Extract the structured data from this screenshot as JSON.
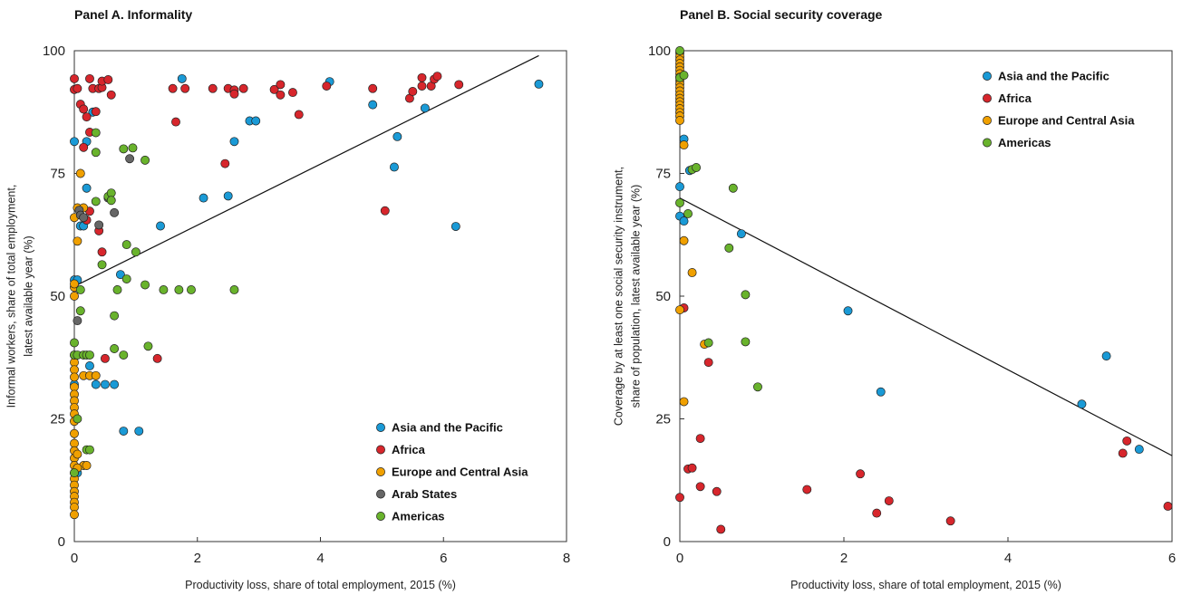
{
  "chart_data": [
    {
      "type": "scatter",
      "title": "Panel A.  Informality",
      "xlabel": "Productivity loss, share of total employment, 2015 (%)",
      "ylabel": [
        "Informal workers, share of total employment,",
        "latest available year (%)"
      ],
      "xlim": [
        0,
        8
      ],
      "ylim": [
        0,
        100
      ],
      "xticks": [
        0,
        2,
        4,
        6,
        8
      ],
      "yticks": [
        0,
        25,
        50,
        75,
        100
      ],
      "grid": false,
      "legend_position": "bottom-right",
      "trendline": [
        [
          0,
          52
        ],
        [
          7.55,
          99
        ]
      ],
      "series": [
        {
          "name": "Asia and the Pacific",
          "color": "#1a9ad6",
          "points": [
            [
              0.0,
              81.5
            ],
            [
              0.0,
              53.3
            ],
            [
              0.05,
              53.3
            ],
            [
              0.0,
              32
            ],
            [
              0.05,
              14
            ],
            [
              0.1,
              64.3
            ],
            [
              0.15,
              64.3
            ],
            [
              0.2,
              72
            ],
            [
              0.2,
              81.5
            ],
            [
              0.25,
              35.8
            ],
            [
              0.3,
              87.5
            ],
            [
              0.35,
              32
            ],
            [
              0.5,
              32
            ],
            [
              0.65,
              32
            ],
            [
              0.75,
              54.4
            ],
            [
              0.8,
              22.5
            ],
            [
              1.05,
              22.5
            ],
            [
              1.4,
              64.3
            ],
            [
              1.75,
              94.3
            ],
            [
              2.1,
              70
            ],
            [
              2.5,
              70.4
            ],
            [
              2.6,
              81.5
            ],
            [
              2.85,
              85.7
            ],
            [
              2.95,
              85.7
            ],
            [
              4.15,
              93.7
            ],
            [
              4.85,
              89
            ],
            [
              5.2,
              76.3
            ],
            [
              5.25,
              82.5
            ],
            [
              5.7,
              88.3
            ],
            [
              6.2,
              64.2
            ],
            [
              7.55,
              93.2
            ]
          ]
        },
        {
          "name": "Africa",
          "color": "#d7262c",
          "points": [
            [
              0.0,
              94.3
            ],
            [
              0.0,
              92.1
            ],
            [
              0.05,
              92.3
            ],
            [
              0.1,
              89.1
            ],
            [
              0.15,
              88.1
            ],
            [
              0.15,
              80.3
            ],
            [
              0.25,
              94.3
            ],
            [
              0.2,
              86.5
            ],
            [
              0.25,
              83.4
            ],
            [
              0.3,
              92.3
            ],
            [
              0.35,
              87.6
            ],
            [
              0.4,
              92.3
            ],
            [
              0.45,
              92.5
            ],
            [
              0.45,
              93.8
            ],
            [
              0.55,
              94.1
            ],
            [
              0.6,
              91
            ],
            [
              0.25,
              67.3
            ],
            [
              0.2,
              65.5
            ],
            [
              0.4,
              63.3
            ],
            [
              0.45,
              59
            ],
            [
              0.5,
              37.3
            ],
            [
              1.35,
              37.3
            ],
            [
              1.6,
              92.3
            ],
            [
              1.65,
              85.5
            ],
            [
              1.8,
              92.3
            ],
            [
              2.25,
              92.3
            ],
            [
              2.45,
              77
            ],
            [
              2.5,
              92.3
            ],
            [
              2.6,
              92
            ],
            [
              2.6,
              91.2
            ],
            [
              2.75,
              92.3
            ],
            [
              3.25,
              92.1
            ],
            [
              3.35,
              93.1
            ],
            [
              3.35,
              91
            ],
            [
              3.55,
              91.5
            ],
            [
              3.65,
              87
            ],
            [
              4.1,
              92.8
            ],
            [
              4.85,
              92.3
            ],
            [
              5.05,
              67.4
            ],
            [
              5.45,
              90.3
            ],
            [
              5.5,
              91.7
            ],
            [
              5.65,
              94.5
            ],
            [
              5.65,
              92.8
            ],
            [
              5.8,
              92.8
            ],
            [
              5.85,
              94.2
            ],
            [
              5.9,
              94.8
            ],
            [
              6.25,
              93.1
            ]
          ]
        },
        {
          "name": "Europe and Central Asia",
          "color": "#f0a000",
          "points": [
            [
              0.0,
              66
            ],
            [
              0.05,
              61.2
            ],
            [
              0.1,
              75
            ],
            [
              0.05,
              68
            ],
            [
              0.15,
              68
            ],
            [
              0.0,
              51.8
            ],
            [
              0.0,
              52.5
            ],
            [
              0.0,
              50
            ],
            [
              0.0,
              38
            ],
            [
              0.0,
              36.5
            ],
            [
              0.0,
              35
            ],
            [
              0.0,
              33.5
            ],
            [
              0.0,
              31.5
            ],
            [
              0.0,
              30
            ],
            [
              0.0,
              28.7
            ],
            [
              0.0,
              27.3
            ],
            [
              0.0,
              26
            ],
            [
              0.0,
              24.5
            ],
            [
              0.0,
              22
            ],
            [
              0.0,
              20
            ],
            [
              0.0,
              18.5
            ],
            [
              0.0,
              17
            ],
            [
              0.0,
              15.5
            ],
            [
              0.0,
              14
            ],
            [
              0.0,
              12.8
            ],
            [
              0.0,
              11.5
            ],
            [
              0.0,
              10.2
            ],
            [
              0.0,
              9.2
            ],
            [
              0.0,
              8
            ],
            [
              0.0,
              7
            ],
            [
              0.0,
              5.5
            ],
            [
              0.05,
              17.8
            ],
            [
              0.15,
              33.8
            ],
            [
              0.25,
              33.8
            ],
            [
              0.35,
              33.8
            ],
            [
              0.15,
              15.5
            ],
            [
              0.2,
              15.5
            ],
            [
              0.05,
              15
            ]
          ]
        },
        {
          "name": "Arab States",
          "color": "#666666",
          "points": [
            [
              0.05,
              45
            ],
            [
              0.08,
              67.5
            ],
            [
              0.1,
              66.5
            ],
            [
              0.15,
              66
            ],
            [
              0.4,
              64.5
            ],
            [
              0.55,
              70
            ],
            [
              0.65,
              67
            ],
            [
              0.9,
              78
            ]
          ]
        },
        {
          "name": "Americas",
          "color": "#69b32c",
          "points": [
            [
              0.0,
              40.5
            ],
            [
              0.0,
              38
            ],
            [
              0.0,
              14
            ],
            [
              0.05,
              38
            ],
            [
              0.05,
              25
            ],
            [
              0.1,
              47
            ],
            [
              0.1,
              51.3
            ],
            [
              0.15,
              38
            ],
            [
              0.2,
              38
            ],
            [
              0.2,
              18.7
            ],
            [
              0.25,
              18.7
            ],
            [
              0.25,
              38
            ],
            [
              0.35,
              83.3
            ],
            [
              0.35,
              79.3
            ],
            [
              0.35,
              69.3
            ],
            [
              0.45,
              56.4
            ],
            [
              0.55,
              70.3
            ],
            [
              0.6,
              71
            ],
            [
              0.6,
              69.5
            ],
            [
              0.65,
              46
            ],
            [
              0.65,
              39.3
            ],
            [
              0.7,
              51.3
            ],
            [
              0.8,
              38
            ],
            [
              0.8,
              80
            ],
            [
              0.85,
              60.5
            ],
            [
              0.85,
              53.5
            ],
            [
              0.95,
              80.2
            ],
            [
              1.0,
              59
            ],
            [
              1.15,
              77.7
            ],
            [
              1.15,
              52.3
            ],
            [
              1.2,
              39.8
            ],
            [
              1.45,
              51.3
            ],
            [
              1.7,
              51.3
            ],
            [
              1.9,
              51.3
            ],
            [
              2.6,
              51.3
            ]
          ]
        }
      ]
    },
    {
      "type": "scatter",
      "title": "Panel B.  Social security coverage",
      "xlabel": "Productivity loss, share of total employment, 2015 (%)",
      "ylabel": [
        "Coverage by at least one social security instrument,",
        "share of population, latest available year (%)"
      ],
      "xlim": [
        0,
        6
      ],
      "ylim": [
        0,
        100
      ],
      "xticks": [
        0,
        2,
        4,
        6
      ],
      "yticks": [
        0,
        25,
        50,
        75,
        100
      ],
      "grid": false,
      "legend_position": "top-right",
      "trendline": [
        [
          0,
          70
        ],
        [
          6,
          17.5
        ]
      ],
      "series": [
        {
          "name": "Asia and the Pacific",
          "color": "#1a9ad6",
          "points": [
            [
              0.0,
              72.3
            ],
            [
              0.0,
              66.3
            ],
            [
              0.05,
              65.3
            ],
            [
              0.05,
              82
            ],
            [
              0.12,
              75.6
            ],
            [
              0.75,
              62.7
            ],
            [
              2.05,
              47
            ],
            [
              2.45,
              30.5
            ],
            [
              4.9,
              28
            ],
            [
              5.2,
              37.8
            ],
            [
              5.6,
              18.8
            ]
          ]
        },
        {
          "name": "Africa",
          "color": "#d7262c",
          "points": [
            [
              0.0,
              9
            ],
            [
              0.05,
              47.6
            ],
            [
              0.1,
              14.8
            ],
            [
              0.15,
              15
            ],
            [
              0.25,
              21
            ],
            [
              0.25,
              11.2
            ],
            [
              0.35,
              36.5
            ],
            [
              0.45,
              10.2
            ],
            [
              0.5,
              2.5
            ],
            [
              1.55,
              10.6
            ],
            [
              2.2,
              13.8
            ],
            [
              2.4,
              5.8
            ],
            [
              2.55,
              8.3
            ],
            [
              3.3,
              4.2
            ],
            [
              5.4,
              18
            ],
            [
              5.45,
              20.5
            ],
            [
              5.95,
              7.2
            ]
          ]
        },
        {
          "name": "Europe and Central Asia",
          "color": "#f0a000",
          "points": [
            [
              0.0,
              99.5
            ],
            [
              0.0,
              98.8
            ],
            [
              0.0,
              98.1
            ],
            [
              0.0,
              97.4
            ],
            [
              0.0,
              96.7
            ],
            [
              0.0,
              96
            ],
            [
              0.0,
              95.3
            ],
            [
              0.0,
              94.6
            ],
            [
              0.0,
              93.9
            ],
            [
              0.0,
              93.2
            ],
            [
              0.0,
              92.5
            ],
            [
              0.0,
              91.8
            ],
            [
              0.0,
              91
            ],
            [
              0.0,
              90.3
            ],
            [
              0.0,
              89.6
            ],
            [
              0.0,
              88.9
            ],
            [
              0.0,
              88.2
            ],
            [
              0.0,
              87.4
            ],
            [
              0.0,
              86.7
            ],
            [
              0.0,
              85.8
            ],
            [
              0.0,
              47.2
            ],
            [
              0.05,
              80.8
            ],
            [
              0.05,
              61.3
            ],
            [
              0.05,
              28.5
            ],
            [
              0.15,
              54.8
            ],
            [
              0.3,
              40.2
            ]
          ]
        },
        {
          "name": "Americas",
          "color": "#69b32c",
          "points": [
            [
              0.0,
              100
            ],
            [
              0.0,
              69
            ],
            [
              0.0,
              94.5
            ],
            [
              0.05,
              95
            ],
            [
              0.1,
              66.8
            ],
            [
              0.15,
              75.8
            ],
            [
              0.2,
              76.2
            ],
            [
              0.35,
              40.5
            ],
            [
              0.6,
              59.8
            ],
            [
              0.65,
              72
            ],
            [
              0.8,
              50.3
            ],
            [
              0.8,
              40.7
            ],
            [
              0.95,
              31.5
            ]
          ]
        }
      ]
    }
  ]
}
